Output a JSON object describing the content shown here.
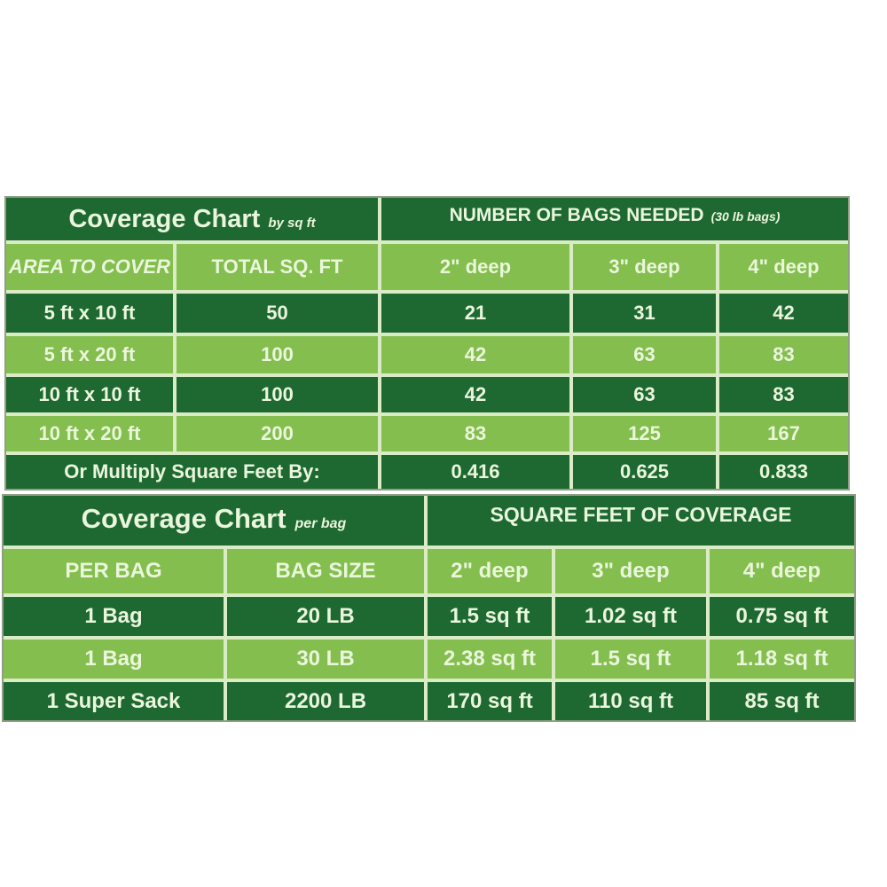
{
  "page_background": "#ffffff",
  "colors": {
    "dark_green": "#1e6832",
    "light_green": "#84be4e",
    "separator": "#d9ecc5",
    "text": "#eaf6dc",
    "outer_border": "#8f9e85"
  },
  "chart_data": [
    {
      "type": "table",
      "name": "coverage-chart-by-sq-ft",
      "title": "Coverage Chart",
      "title_note": "by sq ft",
      "group_header": "NUMBER OF BAGS NEEDED",
      "group_header_note": "(30 lb bags)",
      "columns": [
        "AREA TO COVER",
        "TOTAL SQ. FT",
        "2\" deep",
        "3\" deep",
        "4\" deep"
      ],
      "rows": [
        [
          "5 ft x 10 ft",
          "50",
          "21",
          "31",
          "42"
        ],
        [
          "5 ft x 20 ft",
          "100",
          "42",
          "63",
          "83"
        ],
        [
          "10 ft x 10 ft",
          "100",
          "42",
          "63",
          "83"
        ],
        [
          "10 ft x 20 ft",
          "200",
          "83",
          "125",
          "167"
        ]
      ],
      "footer_label": "Or Multiply Square Feet By:",
      "footer_values": [
        "0.416",
        "0.625",
        "0.833"
      ]
    },
    {
      "type": "table",
      "name": "coverage-chart-per-bag",
      "title": "Coverage Chart",
      "title_note": "per bag",
      "group_header": "SQUARE FEET OF COVERAGE",
      "columns": [
        "PER BAG",
        "BAG SIZE",
        "2\" deep",
        "3\" deep",
        "4\" deep"
      ],
      "rows": [
        [
          "1 Bag",
          "20 LB",
          "1.5 sq ft",
          "1.02 sq ft",
          "0.75 sq ft"
        ],
        [
          "1 Bag",
          "30 LB",
          "2.38 sq ft",
          "1.5 sq ft",
          "1.18 sq ft"
        ],
        [
          "1 Super Sack",
          "2200 LB",
          "170 sq ft",
          "110 sq ft",
          "85 sq ft"
        ]
      ]
    }
  ]
}
